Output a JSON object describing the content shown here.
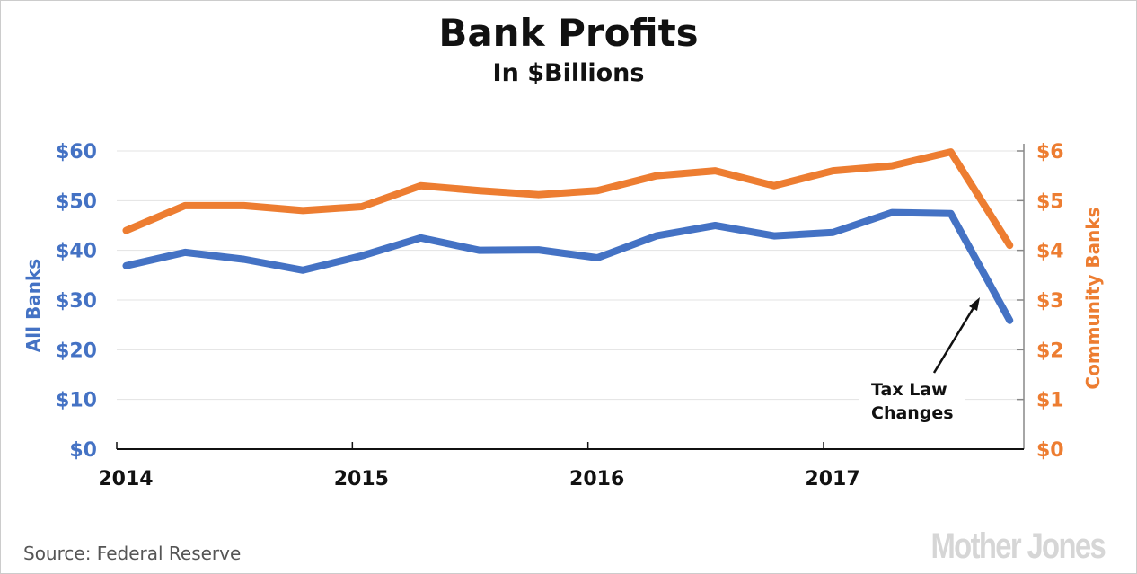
{
  "chart_data": {
    "type": "line",
    "title": "Bank Profits",
    "subtitle": "In $Billions",
    "ylabel_left": "All Banks",
    "ylabel_right": "Community Banks",
    "xlim": [
      2014,
      2017.85
    ],
    "ylim_left": [
      0,
      60
    ],
    "ylim_right": [
      0,
      6
    ],
    "left_ticks": [
      "$0",
      "$10",
      "$20",
      "$30",
      "$40",
      "$50",
      "$60"
    ],
    "left_tick_values": [
      0,
      10,
      20,
      30,
      40,
      50,
      60
    ],
    "right_ticks": [
      "$0",
      "$1",
      "$2",
      "$3",
      "$4",
      "$5",
      "$6"
    ],
    "right_tick_values": [
      0,
      1,
      2,
      3,
      4,
      5,
      6
    ],
    "x_ticks": [
      "2014",
      "2015",
      "2016",
      "2017"
    ],
    "x_tick_values": [
      2014,
      2015,
      2016,
      2017
    ],
    "grid": true,
    "x": [
      2014.04,
      2014.29,
      2014.54,
      2014.79,
      2015.04,
      2015.29,
      2015.54,
      2015.79,
      2016.04,
      2016.29,
      2016.54,
      2016.79,
      2017.04,
      2017.29,
      2017.54,
      2017.79
    ],
    "series": [
      {
        "name": "All Banks",
        "axis": "left",
        "color": "#4472c4",
        "values": [
          36.9,
          39.6,
          38.2,
          36.0,
          38.9,
          42.5,
          40.0,
          40.1,
          38.5,
          42.9,
          45.0,
          42.9,
          43.6,
          47.6,
          47.4,
          25.9
        ]
      },
      {
        "name": "Community Banks",
        "axis": "right",
        "color": "#ed7d31",
        "values": [
          4.4,
          4.9,
          4.9,
          4.8,
          4.88,
          5.3,
          5.2,
          5.12,
          5.2,
          5.5,
          5.6,
          5.3,
          5.6,
          5.7,
          5.98,
          4.1
        ]
      }
    ],
    "annotation": {
      "text_line1": "Tax Law",
      "text_line2": "Changes",
      "points_to_x": 2017.79
    }
  },
  "footer": {
    "source": "Source: Federal Reserve",
    "logo": "MotherJones"
  }
}
